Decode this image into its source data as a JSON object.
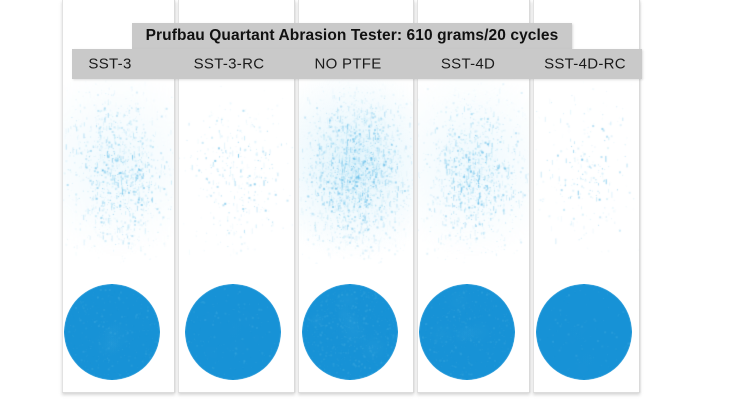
{
  "title": {
    "text": "Prufbau Quartant Abrasion Tester: 610 grams/20 cycles"
  },
  "strips": [
    {
      "label": "SST-3",
      "spray_density": 0.5,
      "circle_mottle": 0.35
    },
    {
      "label": "SST-3-RC",
      "spray_density": 0.15,
      "circle_mottle": 0.18
    },
    {
      "label": "NO PTFE",
      "spray_density": 1.0,
      "circle_mottle": 0.6
    },
    {
      "label": "SST-4D",
      "spray_density": 0.55,
      "circle_mottle": 0.4
    },
    {
      "label": "SST-4D-RC",
      "spray_density": 0.1,
      "circle_mottle": 0.12
    }
  ],
  "colors": {
    "bar_background": "#c9c9c9",
    "title_text": "#111111",
    "label_text": "#1a1a1a",
    "ink_blue": "#1792d6",
    "ink_blue_light": "#49b0e3",
    "spray_blue": "#8ed3f0",
    "spray_blue_soft": "#c2e8f8",
    "strip_white": "#ffffff",
    "strip_edge": "#dadada",
    "page_background": "#ffffff"
  }
}
